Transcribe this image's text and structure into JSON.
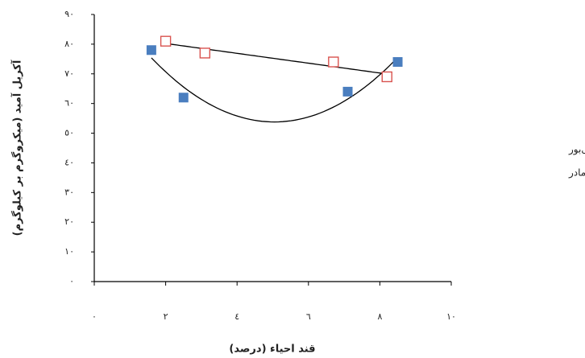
{
  "chart_data": {
    "type": "scatter",
    "xlabel": "قند احیاء (درصد)",
    "ylabel": "آکریل آمید (میکروگرم بر کیلوگرم)",
    "xlim": [
      0,
      10
    ],
    "xticks": [
      {
        "value": 0,
        "label": "۰"
      },
      {
        "value": 2,
        "label": "۲"
      },
      {
        "value": 4,
        "label": "٤"
      },
      {
        "value": 6,
        "label": "٦"
      },
      {
        "value": 8,
        "label": "۸"
      },
      {
        "value": 10,
        "label": "۱۰"
      }
    ],
    "ylim": [
      0,
      90
    ],
    "yticks": [
      {
        "value": 0,
        "label": "۰"
      },
      {
        "value": 10,
        "label": "۱۰"
      },
      {
        "value": 20,
        "label": "۲۰"
      },
      {
        "value": 30,
        "label": "۳۰"
      },
      {
        "value": 40,
        "label": "٤۰"
      },
      {
        "value": 50,
        "label": "٥۰"
      },
      {
        "value": 60,
        "label": "٦۰"
      },
      {
        "value": 70,
        "label": "۷۰"
      },
      {
        "value": 80,
        "label": "۸۰"
      },
      {
        "value": 90,
        "label": "۹۰"
      }
    ],
    "series": [
      {
        "name": "بیسکویت پتی‌بور",
        "color": "#4a7ebf",
        "marker": "filled",
        "trend": "quadratic",
        "x": [
          1.6,
          2.5,
          7.1,
          8.5
        ],
        "values": [
          78,
          62,
          64,
          74
        ]
      },
      {
        "name": "بیسکویت مادر",
        "color": "#d9534f",
        "marker": "open",
        "trend": "linear",
        "x": [
          2.0,
          3.1,
          6.7,
          8.2
        ],
        "values": [
          81,
          77,
          74,
          69
        ]
      }
    ]
  }
}
